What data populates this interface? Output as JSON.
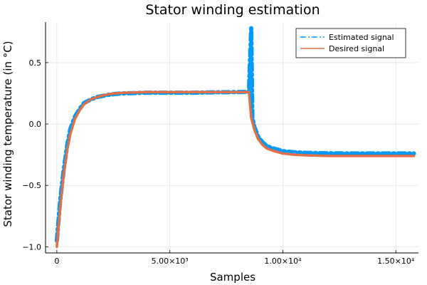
{
  "chart_data": {
    "type": "line",
    "title": "Stator winding estimation",
    "xlabel": "Samples",
    "ylabel": "Stator winding temperature (in °C)",
    "xlim": [
      -500,
      16000
    ],
    "ylim": [
      -1.05,
      0.83
    ],
    "grid": true,
    "legend_position": "top-right",
    "x_ticks": [
      {
        "value": 0,
        "label": "0"
      },
      {
        "value": 5000,
        "label": "5.00×10³"
      },
      {
        "value": 10000,
        "label": "1.00×10⁴"
      },
      {
        "value": 15000,
        "label": "1.50×10⁴"
      }
    ],
    "y_ticks": [
      {
        "value": -1.0,
        "label": "−1.0"
      },
      {
        "value": -0.5,
        "label": "−0.5"
      },
      {
        "value": 0.0,
        "label": "0.0"
      },
      {
        "value": 0.5,
        "label": "0.5"
      }
    ],
    "series": [
      {
        "name": "Estimated signal",
        "color": "#009af9",
        "style": "dashdot",
        "x": [
          0,
          150,
          300,
          450,
          600,
          800,
          1000,
          1200,
          1500,
          1800,
          2200,
          2600,
          3000,
          4000,
          5000,
          6000,
          7000,
          8000,
          8500,
          8600,
          8650,
          8750,
          8900,
          9100,
          9300,
          9600,
          10000,
          10500,
          11000,
          12000,
          13000,
          14000,
          15000,
          15800
        ],
        "y": [
          -0.95,
          -0.62,
          -0.38,
          -0.18,
          -0.04,
          0.06,
          0.12,
          0.17,
          0.2,
          0.22,
          0.235,
          0.245,
          0.25,
          0.255,
          0.255,
          0.255,
          0.258,
          0.26,
          0.262,
          0.78,
          0.05,
          -0.03,
          -0.1,
          -0.15,
          -0.18,
          -0.2,
          -0.22,
          -0.23,
          -0.235,
          -0.238,
          -0.24,
          -0.24,
          -0.24,
          -0.24
        ]
      },
      {
        "name": "Desired signal",
        "color": "#e26f46",
        "style": "solid",
        "x": [
          0,
          150,
          300,
          450,
          600,
          800,
          1000,
          1200,
          1500,
          1800,
          2200,
          2600,
          3000,
          4000,
          5000,
          6000,
          7000,
          8000,
          8500,
          8600,
          8750,
          8900,
          9100,
          9300,
          9600,
          10000,
          10500,
          11000,
          12000,
          13000,
          14000,
          15000,
          15800
        ],
        "y": [
          -1.0,
          -0.68,
          -0.42,
          -0.22,
          -0.08,
          0.04,
          0.11,
          0.16,
          0.2,
          0.22,
          0.24,
          0.25,
          0.255,
          0.26,
          0.26,
          0.26,
          0.26,
          0.26,
          0.26,
          0.05,
          -0.05,
          -0.12,
          -0.17,
          -0.2,
          -0.22,
          -0.24,
          -0.25,
          -0.255,
          -0.26,
          -0.26,
          -0.26,
          -0.26,
          -0.26
        ]
      }
    ]
  }
}
